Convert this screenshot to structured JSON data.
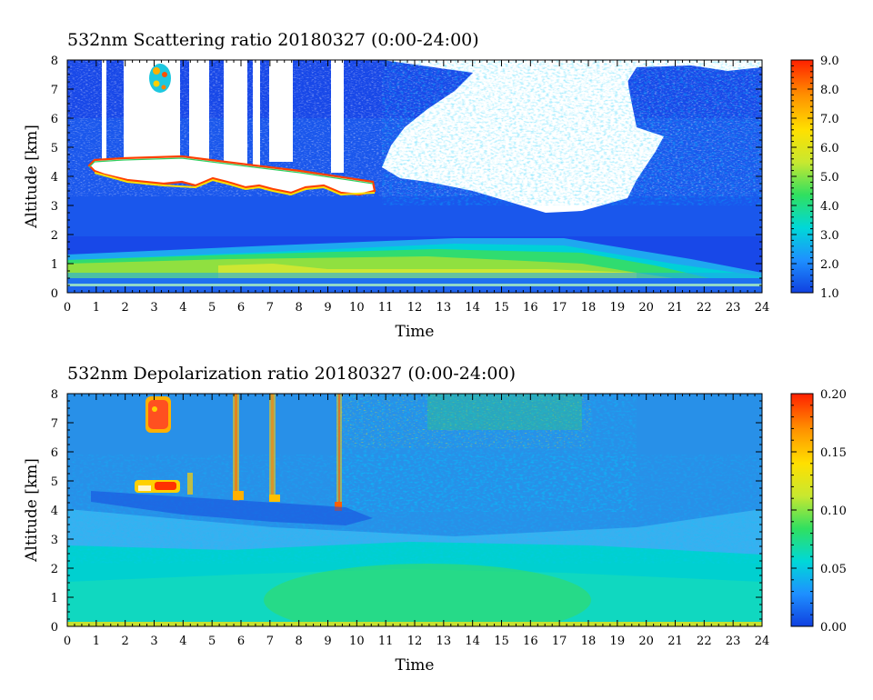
{
  "chart_data": [
    {
      "type": "heatmap",
      "title": "532nm Scattering ratio  20180327 (0:00-24:00)",
      "xlabel": "Time",
      "ylabel": "Altitude [km]",
      "xlim": [
        0,
        24
      ],
      "ylim": [
        0,
        8
      ],
      "x_ticks": [
        "0",
        "1",
        "2",
        "3",
        "4",
        "5",
        "6",
        "7",
        "8",
        "9",
        "10",
        "11",
        "12",
        "13",
        "14",
        "15",
        "16",
        "17",
        "18",
        "19",
        "20",
        "21",
        "22",
        "23",
        "24"
      ],
      "y_ticks": [
        "0",
        "1",
        "2",
        "3",
        "4",
        "5",
        "6",
        "7",
        "8"
      ],
      "colorbar": {
        "range": [
          1.0,
          9.0
        ],
        "ticks": [
          "1.0",
          "2.0",
          "3.0",
          "4.0",
          "5.0",
          "6.0",
          "7.0",
          "8.0",
          "9.0"
        ],
        "colors": [
          "#1040e0",
          "#1e90ff",
          "#00d8d8",
          "#30e060",
          "#c8e830",
          "#ffe000",
          "#ff9000",
          "#ff2000"
        ]
      },
      "features": {
        "no_data_color": "#ffffff",
        "cloud_base_km": 4.4,
        "boundary_layer_top_km": 1.5
      }
    },
    {
      "type": "heatmap",
      "title": "532nm Depolarization ratio  20180327 (0:00-24:00)",
      "xlabel": "Time",
      "ylabel": "Altitude [km]",
      "xlim": [
        0,
        24
      ],
      "ylim": [
        0,
        8
      ],
      "x_ticks": [
        "0",
        "1",
        "2",
        "3",
        "4",
        "5",
        "6",
        "7",
        "8",
        "9",
        "10",
        "11",
        "12",
        "13",
        "14",
        "15",
        "16",
        "17",
        "18",
        "19",
        "20",
        "21",
        "22",
        "23",
        "24"
      ],
      "y_ticks": [
        "0",
        "1",
        "2",
        "3",
        "4",
        "5",
        "6",
        "7",
        "8"
      ],
      "colorbar": {
        "range": [
          0.0,
          0.2
        ],
        "ticks": [
          "0.00",
          "0.05",
          "0.10",
          "0.15",
          "0.20"
        ],
        "colors": [
          "#1040e0",
          "#1e90ff",
          "#00d8d8",
          "#30e060",
          "#c8e830",
          "#ffe000",
          "#ff9000",
          "#ff2000"
        ]
      },
      "features": {
        "cloud_base_km": 4.6
      }
    }
  ]
}
